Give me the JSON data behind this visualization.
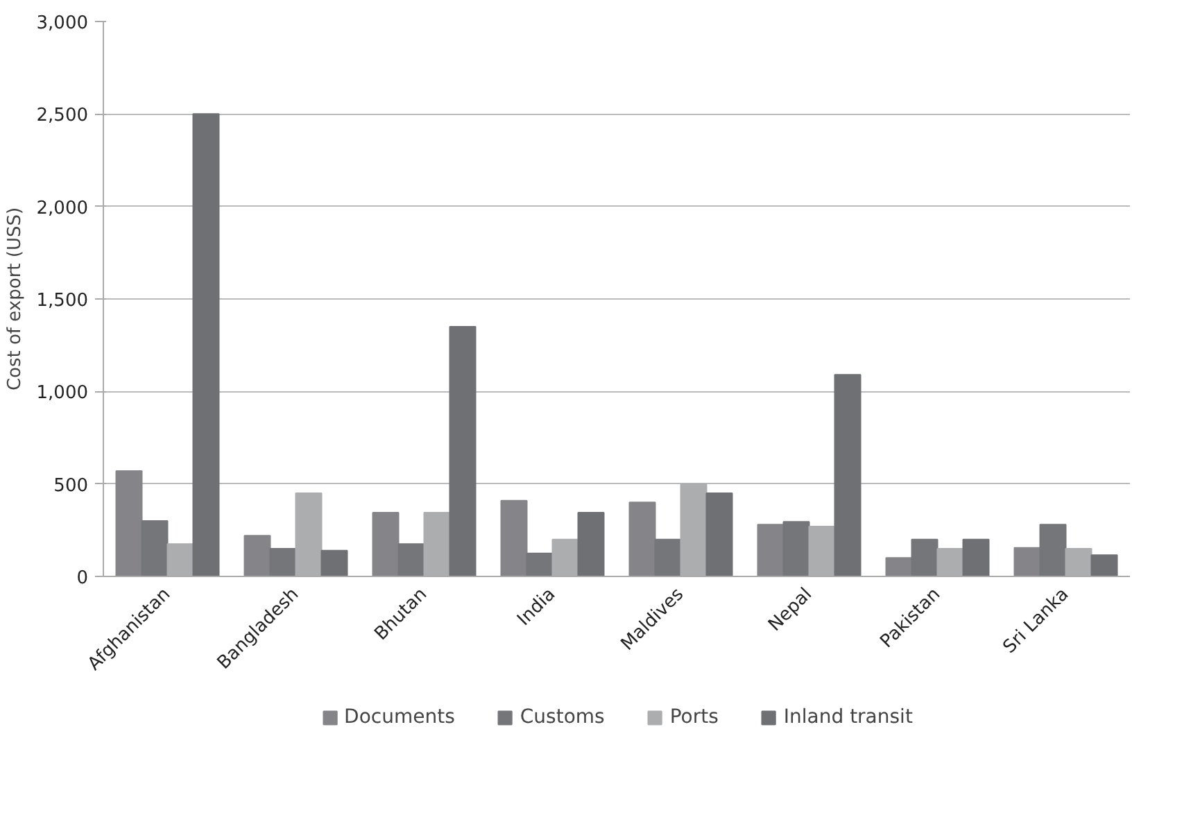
{
  "chart_data": {
    "type": "bar",
    "ylabel": "Cost of export (USS)",
    "categories": [
      "Afghanistan",
      "Bangladesh",
      "Bhutan",
      "India",
      "Maldives",
      "Nepal",
      "Pakistan",
      "Sri Lanka"
    ],
    "series": [
      {
        "name": "Documents",
        "color": "#858589",
        "values": [
          570,
          220,
          345,
          410,
          400,
          280,
          100,
          155
        ]
      },
      {
        "name": "Customs",
        "color": "#75767a",
        "values": [
          300,
          150,
          175,
          125,
          200,
          295,
          200,
          280
        ]
      },
      {
        "name": "Ports",
        "color": "#acadaf",
        "values": [
          175,
          450,
          345,
          200,
          500,
          270,
          150,
          150
        ]
      },
      {
        "name": "Inland transit",
        "color": "#6f7074",
        "values": [
          2500,
          140,
          1350,
          345,
          450,
          1090,
          200,
          115
        ]
      }
    ],
    "ylim": [
      0,
      3000
    ],
    "yticks": [
      {
        "value": 0,
        "label": "0"
      },
      {
        "value": 500,
        "label": "500"
      },
      {
        "value": 1000,
        "label": "1,000"
      },
      {
        "value": 1500,
        "label": "1,500"
      },
      {
        "value": 2000,
        "label": "2,000"
      },
      {
        "value": 2500,
        "label": "2,500"
      },
      {
        "value": 3000,
        "label": "3,000"
      }
    ],
    "grid": "y",
    "legend": "bottom"
  }
}
